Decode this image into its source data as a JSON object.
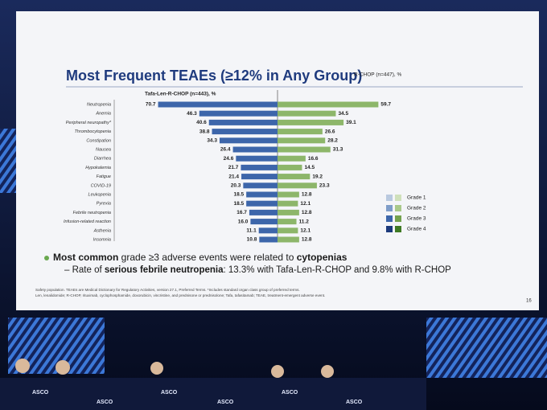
{
  "chart_data": {
    "type": "butterfly_bar",
    "title": "Most Frequent TEAEs (≥12% in Any Group)",
    "categories": [
      "Neutropenia",
      "Anemia",
      "Peripheral neuropathy*",
      "Thrombocytopenia",
      "Constipation",
      "Nausea",
      "Diarrhea",
      "Hypokalemia",
      "Fatigue",
      "COVID-19",
      "Leukopenia",
      "Pyrexia",
      "Febrile neutropenia",
      "Infusion-related reaction",
      "Asthenia",
      "Insomnia"
    ],
    "series": [
      {
        "name": "Tafa-Len-R-CHOP (n=443), %",
        "color": "#3d66aa",
        "values": [
          70.7,
          46.3,
          40.6,
          38.8,
          34.3,
          26.4,
          24.6,
          21.7,
          21.4,
          20.3,
          18.5,
          18.5,
          16.7,
          16.0,
          11.1,
          10.8
        ],
        "value_labels": [
          "70.7",
          "46.3",
          "40.6",
          "38.8",
          "34.3",
          "26.4",
          "24.6",
          "21.7",
          "21.4",
          "20.3",
          "18.5",
          "18.5",
          "16.7",
          "16.0",
          "11.1",
          "10.8"
        ]
      },
      {
        "name": "R-CHOP (n=447), %",
        "color": "#8db66a",
        "values": [
          59.7,
          34.5,
          39.1,
          26.6,
          28.2,
          31.3,
          16.6,
          14.5,
          19.2,
          23.3,
          12.8,
          12.1,
          12.8,
          11.2,
          12.1,
          12.8
        ],
        "value_labels": [
          "59.7",
          "34.5",
          "39.1",
          "26.6",
          "28.2",
          "31.3",
          "16.6",
          "14.5",
          "19.2",
          "23.3",
          "12.8",
          "12.1",
          "12.8",
          "11.2",
          "12.1",
          "12.8"
        ]
      }
    ],
    "legend": [
      {
        "label": "Grade 1",
        "colors": [
          "#b9c9df",
          "#cfe0bb"
        ]
      },
      {
        "label": "Grade 2",
        "colors": [
          "#7f9dc9",
          "#a9c98a"
        ]
      },
      {
        "label": "Grade 3",
        "colors": [
          "#3d66aa",
          "#74a24e"
        ]
      },
      {
        "label": "Grade 4",
        "colors": [
          "#1c3a7c",
          "#3f7a24"
        ]
      }
    ]
  },
  "bullets": [
    [
      {
        "text": "Most common",
        "bold": true
      },
      {
        "text": " grade ≥3 adverse events were related to "
      },
      {
        "text": "cytopenias",
        "bold": true
      }
    ],
    [
      {
        "text": "– Rate of "
      },
      {
        "text": "serious febrile neutropenia",
        "bold": true
      },
      {
        "text": ": 13.3% with Tafa-Len-R-CHOP and 9.8% with R-CHOP"
      }
    ]
  ],
  "footnotes": [
    "Safety population. TEAEs are Medical Dictionary for Regulatory Activities, version 27.1, Preferred Terms. *Includes standard organ class group of preferred terms.",
    "Len, lenalidomide; R-CHOP, rituximab, cyclophosphamide, doxorubicin, vincristine, and prednisone or prednisolone; Tafa, tafasitamab; TEAE, treatment-emergent adverse event."
  ],
  "page_number": "16",
  "stage_banner": "ASCO"
}
